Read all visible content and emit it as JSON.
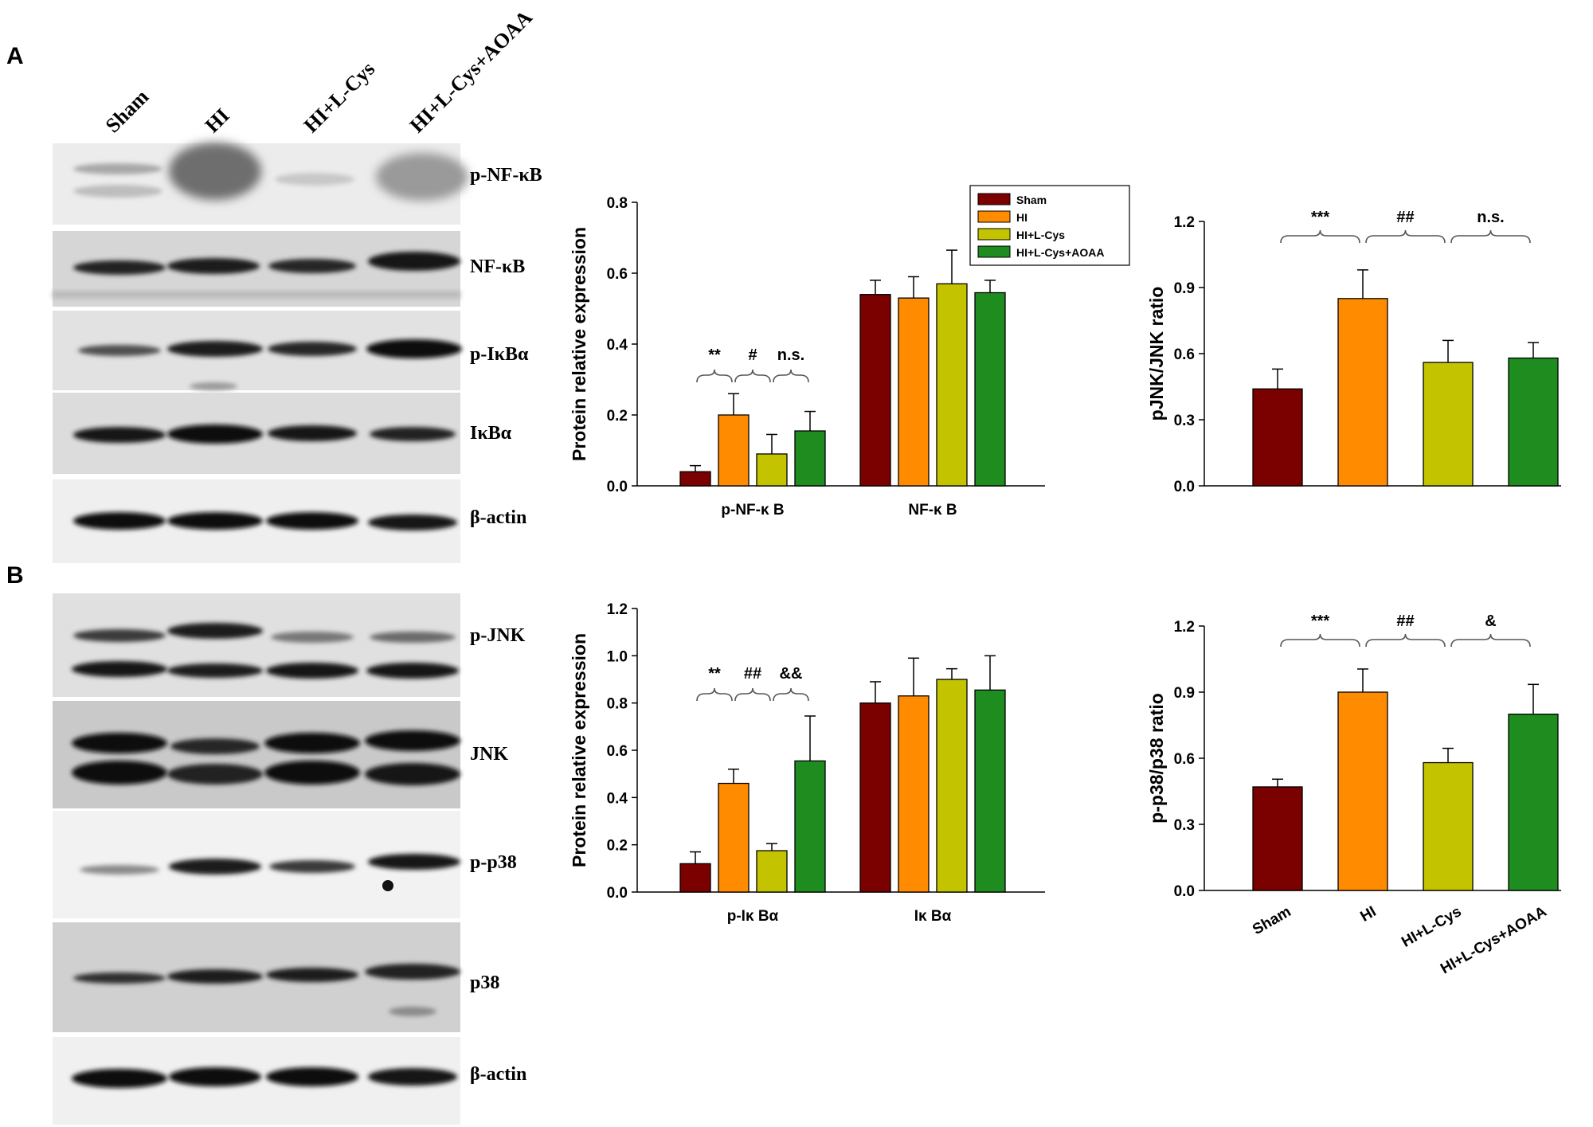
{
  "panel_labels": [
    "A",
    "B"
  ],
  "lane_labels": [
    "Sham",
    "HI",
    "HI+L-Cys",
    "HI+L-Cys+AOAA"
  ],
  "blot_labels_A": [
    "p-NF-κB",
    "NF-κB",
    "p-IκBα",
    "IκBα",
    "β-actin"
  ],
  "blot_labels_B": [
    "p-JNK",
    "JNK",
    "p-p38",
    "p38",
    "β-actin"
  ],
  "colors": {
    "Sham": "#7b0000",
    "HI": "#ff8c00",
    "HI+L-Cys": "#c3c300",
    "HI+L-Cys+AOAA": "#1e8c1e"
  },
  "chart_data": [
    {
      "id": "nfkb",
      "type": "bar",
      "ylabel": "Protein relative expression",
      "ylim": [
        0,
        0.8
      ],
      "yticks": [
        "0.0",
        "0.2",
        "0.4",
        "0.6",
        "0.8"
      ],
      "categories": [
        "p-NF-κ B",
        "NF-κ B"
      ],
      "legend": {
        "placement": "top-right",
        "entries": [
          "Sham",
          "HI",
          "HI+L-Cys",
          "HI+L-Cys+AOAA"
        ]
      },
      "series": [
        {
          "name": "Sham",
          "values": [
            0.04,
            0.54
          ],
          "errors": [
            0.017,
            0.04
          ]
        },
        {
          "name": "HI",
          "values": [
            0.2,
            0.53
          ],
          "errors": [
            0.06,
            0.06
          ]
        },
        {
          "name": "HI+L-Cys",
          "values": [
            0.09,
            0.57
          ],
          "errors": [
            0.055,
            0.095
          ]
        },
        {
          "name": "HI+L-Cys+AOAA",
          "values": [
            0.155,
            0.545
          ],
          "errors": [
            0.055,
            0.035
          ]
        }
      ],
      "annotations": [
        "**",
        "#",
        "n.s."
      ]
    },
    {
      "id": "jnk",
      "type": "bar",
      "ylabel": "pJNK/JNK ratio",
      "ylim": [
        0,
        1.2
      ],
      "yticks": [
        "0.0",
        "0.3",
        "0.6",
        "0.9",
        "1.2"
      ],
      "categories": [
        "Sham",
        "HI",
        "HI+L-Cys",
        "HI+L-Cys+AOAA"
      ],
      "values": [
        0.44,
        0.85,
        0.56,
        0.58
      ],
      "errors": [
        0.09,
        0.13,
        0.1,
        0.07
      ],
      "annotations": [
        "***",
        "##",
        "n.s."
      ]
    },
    {
      "id": "ikba",
      "type": "bar",
      "ylabel": "Protein relative expression",
      "ylim": [
        0,
        1.2
      ],
      "yticks": [
        "0.0",
        "0.2",
        "0.4",
        "0.6",
        "0.8",
        "1.0",
        "1.2"
      ],
      "categories": [
        "p-Iκ Bα",
        "Iκ Bα"
      ],
      "series": [
        {
          "name": "Sham",
          "values": [
            0.12,
            0.8
          ],
          "errors": [
            0.05,
            0.09
          ]
        },
        {
          "name": "HI",
          "values": [
            0.46,
            0.83
          ],
          "errors": [
            0.06,
            0.16
          ]
        },
        {
          "name": "HI+L-Cys",
          "values": [
            0.175,
            0.9
          ],
          "errors": [
            0.03,
            0.045
          ]
        },
        {
          "name": "HI+L-Cys+AOAA",
          "values": [
            0.555,
            0.855
          ],
          "errors": [
            0.19,
            0.145
          ]
        }
      ],
      "annotations": [
        "**",
        "##",
        "&&"
      ]
    },
    {
      "id": "p38",
      "type": "bar",
      "ylabel": "p-p38/p38 ratio",
      "ylim": [
        0,
        1.2
      ],
      "yticks": [
        "0.0",
        "0.3",
        "0.6",
        "0.9",
        "1.2"
      ],
      "categories": [
        "Sham",
        "HI",
        "HI+L-Cys",
        "HI+L-Cys+AOAA"
      ],
      "values": [
        0.47,
        0.9,
        0.58,
        0.8
      ],
      "errors": [
        0.035,
        0.105,
        0.065,
        0.135
      ],
      "annotations": [
        "***",
        "##",
        "&"
      ]
    }
  ]
}
